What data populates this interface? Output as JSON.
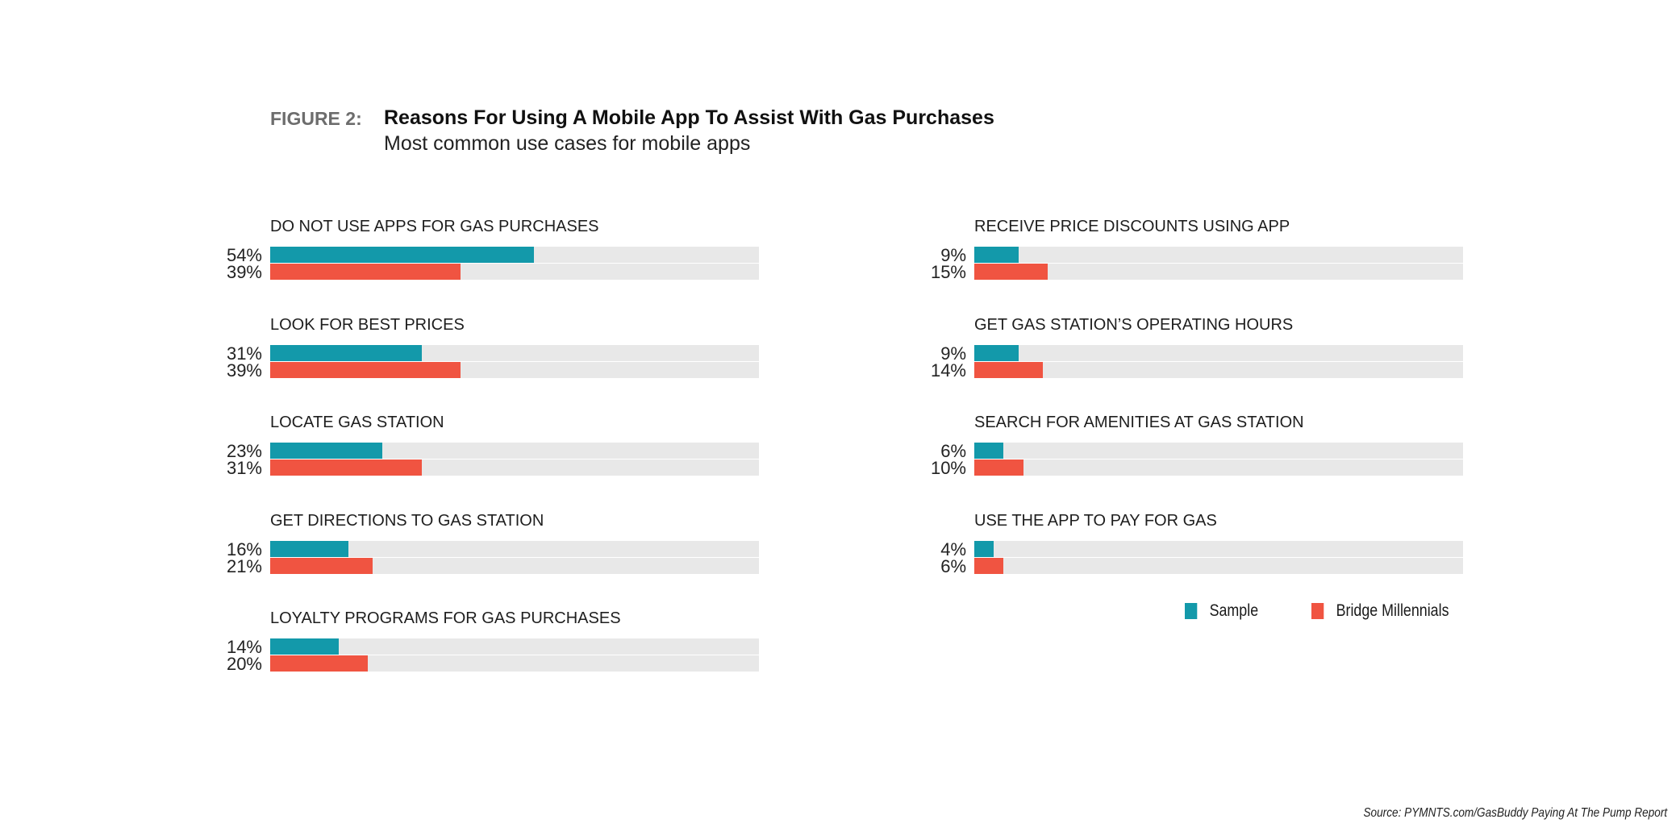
{
  "header": {
    "figure_label": "FIGURE 2:",
    "title": "Reasons For Using A Mobile App To Assist With Gas Purchases",
    "subtitle": "Most common use cases for mobile apps"
  },
  "source": "Source: PYMNTS.com/GasBuddy Paying At The Pump Report",
  "colors": {
    "sample": "#1399aa",
    "bridge": "#f05441",
    "track": "#e8e8e8"
  },
  "chart_data": {
    "type": "bar",
    "orientation": "horizontal",
    "title": "Reasons For Using A Mobile App To Assist With Gas Purchases",
    "subtitle": "Most common use cases for mobile apps",
    "xlim": [
      0,
      100
    ],
    "unit": "%",
    "legend": {
      "position": "bottom-right",
      "entries": [
        "Sample",
        "Bridge Millennials"
      ]
    },
    "categories": [
      "DO NOT USE APPS FOR GAS PURCHASES",
      "LOOK FOR BEST PRICES",
      "LOCATE GAS STATION",
      "GET DIRECTIONS TO GAS STATION",
      "LOYALTY PROGRAMS FOR GAS PURCHASES",
      "RECEIVE PRICE DISCOUNTS USING APP",
      "GET GAS STATION’S OPERATING HOURS",
      "SEARCH FOR AMENITIES AT GAS STATION",
      "USE THE APP TO PAY FOR GAS"
    ],
    "series": [
      {
        "name": "Sample",
        "values": [
          54,
          31,
          23,
          16,
          14,
          9,
          9,
          6,
          4
        ]
      },
      {
        "name": "Bridge Millennials",
        "values": [
          39,
          39,
          31,
          21,
          20,
          15,
          14,
          10,
          6
        ]
      }
    ]
  }
}
